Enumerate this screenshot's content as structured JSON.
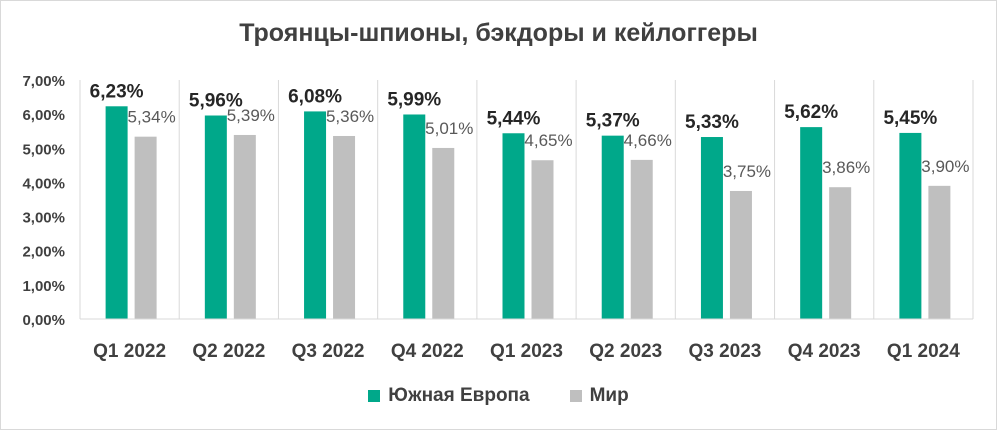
{
  "chart_data": {
    "type": "bar",
    "title": "Троянцы-шпионы, бэкдоры и кейлоггеры",
    "categories": [
      "Q1 2022",
      "Q2 2022",
      "Q3 2022",
      "Q4 2022",
      "Q1 2023",
      "Q2 2023",
      "Q3 2023",
      "Q4 2023",
      "Q1 2024"
    ],
    "series": [
      {
        "name": "Южная Европа",
        "color": "#00a88a",
        "values": [
          6.23,
          5.96,
          6.08,
          5.99,
          5.44,
          5.37,
          5.33,
          5.62,
          5.45
        ],
        "labels": [
          "6,23%",
          "5,96%",
          "6,08%",
          "5,99%",
          "5,44%",
          "5,37%",
          "5,33%",
          "5,62%",
          "5,45%"
        ]
      },
      {
        "name": "Мир",
        "color": "#bfbfbf",
        "values": [
          5.34,
          5.39,
          5.36,
          5.01,
          4.65,
          4.66,
          3.75,
          3.86,
          3.9
        ],
        "labels": [
          "5,34%",
          "5,39%",
          "5,36%",
          "5,01%",
          "4,65%",
          "4,66%",
          "3,75%",
          "3,86%",
          "3,90%"
        ]
      }
    ],
    "ylim": [
      0,
      7
    ],
    "yticks": [
      0,
      1,
      2,
      3,
      4,
      5,
      6,
      7
    ],
    "ytick_labels": [
      "0,00%",
      "1,00%",
      "2,00%",
      "3,00%",
      "4,00%",
      "5,00%",
      "6,00%",
      "7,00%"
    ],
    "xlabel": "",
    "ylabel": "",
    "grid": "vertical",
    "legend_position": "bottom"
  }
}
